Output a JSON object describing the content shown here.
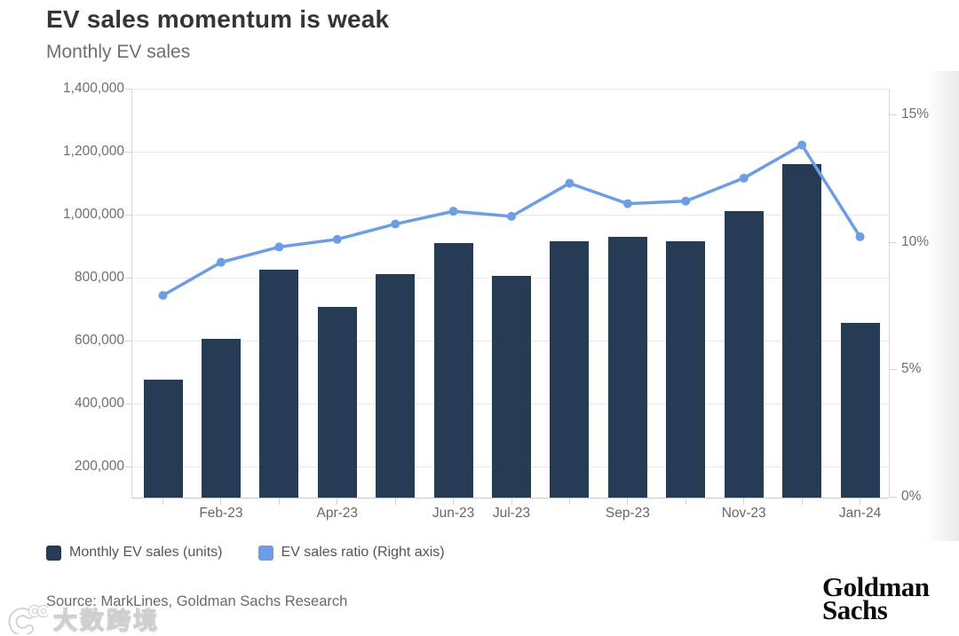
{
  "header": {
    "title": "EV sales momentum is weak",
    "subtitle": "Monthly EV sales"
  },
  "chart_data": {
    "type": "bar",
    "subtype": "combo-bar-line",
    "categories": [
      "Jan-23",
      "Feb-23",
      "Mar-23",
      "Apr-23",
      "May-23",
      "Jun-23",
      "Jul-23",
      "Aug-23",
      "Sep-23",
      "Oct-23",
      "Nov-23",
      "Dec-23",
      "Jan-24"
    ],
    "series": [
      {
        "name": "Monthly EV sales (units)",
        "type": "bar",
        "axis": "left",
        "color": "#263b54",
        "values": [
          475000,
          605000,
          825000,
          705000,
          810000,
          910000,
          805000,
          915000,
          930000,
          915000,
          1010000,
          1160000,
          655000
        ]
      },
      {
        "name": "EV sales ratio (Right axis)",
        "type": "line",
        "axis": "right",
        "color": "#6d9de3",
        "values": [
          7.9,
          9.2,
          9.8,
          10.1,
          10.7,
          11.2,
          11.0,
          12.3,
          11.5,
          11.6,
          12.5,
          13.8,
          10.2
        ]
      }
    ],
    "left_axis": {
      "min": 100000,
      "max": 1400000,
      "ticks": [
        200000,
        400000,
        600000,
        800000,
        1000000,
        1200000,
        1400000
      ],
      "tick_labels": [
        "200,000",
        "400,000",
        "600,000",
        "800,000",
        "1,000,000",
        "1,200,000",
        "1,400,000"
      ]
    },
    "right_axis": {
      "min": 0,
      "max": 15,
      "ticks": [
        0,
        5,
        10,
        15
      ],
      "tick_labels": [
        "0%",
        "5%",
        "10%",
        "15%"
      ]
    },
    "x_labels_shown": [
      {
        "index": 1,
        "label": "Feb-23"
      },
      {
        "index": 3,
        "label": "Apr-23"
      },
      {
        "index": 5,
        "label": "Jun-23"
      },
      {
        "index": 6,
        "label": "Jul-23"
      },
      {
        "index": 8,
        "label": "Sep-23"
      },
      {
        "index": 10,
        "label": "Nov-23"
      },
      {
        "index": 12,
        "label": "Jan-24"
      }
    ],
    "grid": "horizontal",
    "legend_position": "bottom-left"
  },
  "footer": {
    "source": "Source: MarkLines, Goldman Sachs Research",
    "brand_line1": "Goldman",
    "brand_line2": "Sachs"
  },
  "watermark": {
    "text": "大数跨境"
  }
}
